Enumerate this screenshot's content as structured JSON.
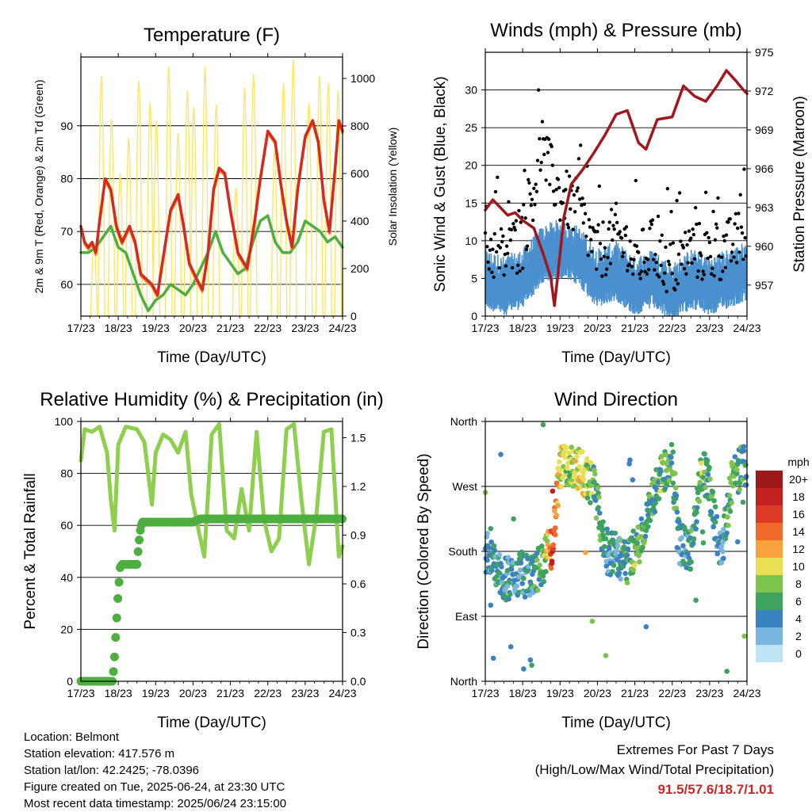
{
  "chart_data": [
    {
      "type": "line",
      "title": "Temperature (F)",
      "xlabel": "Time (Day/UTC)",
      "ylabel": "2m & 9m T (Red, Orange) & 2m Td (Green)",
      "y2label": "Solar Insolation (Yellow)",
      "x_ticks": [
        "17/23",
        "18/23",
        "19/23",
        "20/23",
        "21/23",
        "22/23",
        "23/23",
        "24/23"
      ],
      "ylim": [
        54,
        103
      ],
      "y_ticks": [
        60,
        70,
        80,
        90
      ],
      "y2lim": [
        0,
        1090
      ],
      "y2_ticks": [
        0,
        200,
        400,
        600,
        800,
        1000
      ],
      "colors": {
        "t2m": "#d42a20",
        "t9m": "#f08a24",
        "td": "#4caf3f",
        "solar": "#ffe566"
      },
      "series": [
        {
          "key": "t2m",
          "x": [
            0,
            0.1,
            0.2,
            0.3,
            0.4,
            0.5,
            0.65,
            0.8,
            0.95,
            1.1,
            1.3,
            1.45,
            1.6,
            1.75,
            1.9,
            2.05,
            2.2,
            2.4,
            2.6,
            2.75,
            2.9,
            3.1,
            3.25,
            3.4,
            3.55,
            3.7,
            3.85,
            4.0,
            4.2,
            4.45,
            4.65,
            4.8,
            5.0,
            5.2,
            5.35,
            5.5,
            5.65,
            5.8,
            6.0,
            6.2,
            6.35,
            6.5,
            6.65,
            6.8,
            6.9,
            7.0
          ],
          "values": [
            71,
            68,
            67,
            68,
            66,
            72,
            80,
            78,
            71,
            68,
            71,
            68,
            62,
            61,
            60,
            58,
            65,
            74,
            77,
            71,
            64,
            61,
            59,
            66,
            78,
            82,
            81,
            74,
            66,
            63,
            72,
            80,
            89,
            87,
            79,
            72,
            67,
            78,
            88,
            91,
            87,
            76,
            70,
            82,
            91,
            89
          ]
        },
        {
          "key": "td",
          "x": [
            0,
            0.2,
            0.4,
            0.6,
            0.8,
            1.0,
            1.2,
            1.4,
            1.6,
            1.8,
            2.0,
            2.2,
            2.4,
            2.6,
            2.8,
            3.0,
            3.2,
            3.4,
            3.6,
            3.8,
            4.0,
            4.2,
            4.4,
            4.6,
            4.8,
            5.0,
            5.2,
            5.4,
            5.6,
            5.8,
            6.0,
            6.2,
            6.4,
            6.6,
            6.8,
            7.0
          ],
          "values": [
            66,
            66,
            67,
            69,
            71,
            67,
            66,
            62,
            58,
            55,
            57,
            58,
            60,
            59,
            58,
            60,
            63,
            66,
            70,
            66,
            64,
            62,
            63,
            68,
            72,
            73,
            68,
            66,
            66,
            68,
            72,
            71,
            70,
            68,
            69,
            67
          ]
        },
        {
          "key": "solar",
          "peaks_x": [
            0.35,
            0.55,
            0.82,
            1.05,
            1.28,
            1.55,
            1.85,
            2.02,
            2.35,
            2.6,
            2.85,
            3.02,
            3.32,
            3.62,
            4.15,
            4.38,
            4.62,
            5.18,
            5.42,
            5.68,
            6.1,
            6.38,
            6.62,
            6.88
          ],
          "peaks": [
            300,
            1010,
            830,
            600,
            750,
            990,
            900,
            820,
            1050,
            770,
            950,
            880,
            1050,
            890,
            540,
            960,
            1020,
            700,
            980,
            1080,
            900,
            1010,
            980,
            950
          ]
        }
      ]
    },
    {
      "type": "scatter",
      "title": "Winds (mph) & Pressure (mb)",
      "xlabel": "Time (Day/UTC)",
      "ylabel": "Sonic Wind & Gust (Blue, Black)",
      "y2label": "Station Pressure (Maroon)",
      "x_ticks": [
        "17/23",
        "18/23",
        "19/23",
        "20/23",
        "21/23",
        "22/23",
        "23/23",
        "24/23"
      ],
      "ylim": [
        0,
        35
      ],
      "y_ticks": [
        0,
        5,
        10,
        15,
        20,
        25,
        30
      ],
      "y2lim": [
        954.6,
        975.0
      ],
      "y2_ticks": [
        957,
        960,
        963,
        966,
        969,
        972,
        975
      ],
      "colors": {
        "wind": "#4a90cf",
        "gust": "#000000",
        "pressure": "#a0181e"
      },
      "series": [
        {
          "key": "pressure",
          "x": [
            0,
            0.2,
            0.4,
            0.6,
            0.8,
            1.0,
            1.3,
            1.55,
            1.75,
            1.85,
            1.95,
            2.1,
            2.3,
            2.6,
            2.9,
            3.2,
            3.5,
            3.8,
            4.1,
            4.3,
            4.6,
            5.0,
            5.3,
            5.6,
            5.9,
            6.2,
            6.45,
            6.7,
            6.9,
            7.0
          ],
          "values": [
            962.8,
            963.6,
            963.0,
            962.4,
            962.6,
            962.0,
            961.4,
            959.4,
            957.6,
            955.4,
            958.0,
            962.2,
            964.8,
            965.9,
            967.2,
            968.6,
            970.2,
            970.5,
            968.0,
            967.5,
            969.8,
            970.0,
            972.4,
            971.6,
            971.2,
            972.4,
            973.6,
            972.8,
            972.1,
            971.8
          ]
        },
        {
          "key": "wind",
          "envelope_x": [
            0,
            0.5,
            1.0,
            1.5,
            2.0,
            2.5,
            3.0,
            3.5,
            4.0,
            4.5,
            5.0,
            5.5,
            6.0,
            6.5,
            7.0
          ],
          "envelope_values": [
            5,
            4,
            5,
            8,
            9,
            8,
            5,
            6,
            4,
            5,
            3,
            5,
            4,
            5,
            6
          ]
        },
        {
          "key": "gust",
          "envelope_x": [
            0,
            0.5,
            1.0,
            1.5,
            2.0,
            2.5,
            3.0,
            3.5,
            4.0,
            4.5,
            5.0,
            5.5,
            6.0,
            6.5,
            7.0
          ],
          "envelope_values": [
            9,
            8,
            10,
            22,
            16,
            14,
            8,
            11,
            7,
            9,
            6,
            9,
            8,
            9,
            11
          ]
        }
      ]
    },
    {
      "type": "line",
      "title": "Relative Humidity (%) & Precipitation (in)",
      "xlabel": "Time (Day/UTC)",
      "ylabel": "Percent & Total Rainfall",
      "x_ticks": [
        "17/23",
        "18/23",
        "19/23",
        "20/23",
        "21/23",
        "22/23",
        "23/23",
        "24/23"
      ],
      "ylim": [
        0,
        100
      ],
      "y_ticks": [
        0,
        20,
        40,
        60,
        80,
        100
      ],
      "y2lim": [
        0,
        1.6
      ],
      "y2_ticks": [
        "0.0",
        "0.3",
        "0.6",
        "0.9",
        "1.2",
        "1.5"
      ],
      "colors": {
        "rh": "#8fcf4f",
        "precip": "#4caf3f"
      },
      "series": [
        {
          "key": "rh",
          "x": [
            0,
            0.1,
            0.3,
            0.5,
            0.7,
            0.8,
            0.9,
            1.0,
            1.2,
            1.5,
            1.7,
            1.9,
            2.0,
            2.2,
            2.4,
            2.6,
            2.8,
            2.95,
            3.15,
            3.3,
            3.5,
            3.7,
            3.9,
            4.1,
            4.3,
            4.5,
            4.7,
            4.9,
            5.1,
            5.3,
            5.5,
            5.7,
            5.9,
            6.1,
            6.3,
            6.5,
            6.7,
            6.9,
            7.0
          ],
          "values": [
            85,
            97,
            96,
            98,
            88,
            70,
            58,
            91,
            98,
            97,
            92,
            68,
            88,
            95,
            93,
            88,
            96,
            72,
            58,
            48,
            95,
            99,
            58,
            55,
            74,
            58,
            96,
            62,
            50,
            55,
            97,
            99,
            70,
            45,
            64,
            96,
            97,
            48,
            52
          ]
        },
        {
          "key": "precip",
          "x": [
            0,
            0.85,
            0.9,
            0.95,
            1.0,
            1.05,
            1.1,
            1.3,
            1.5,
            1.55,
            1.6,
            1.65,
            3.0,
            3.2,
            7.0
          ],
          "values": [
            0.0,
            0.0,
            0.15,
            0.35,
            0.55,
            0.7,
            0.72,
            0.72,
            0.72,
            0.85,
            0.95,
            0.98,
            0.98,
            1.0,
            1.0
          ]
        }
      ]
    },
    {
      "type": "scatter",
      "title": "Wind Direction",
      "xlabel": "Time (Day/UTC)",
      "ylabel": "Direction (Colored By Speed)",
      "x_ticks": [
        "17/23",
        "18/23",
        "19/23",
        "20/23",
        "21/23",
        "22/23",
        "23/23",
        "24/23"
      ],
      "y_ticks": [
        "North",
        "East",
        "South",
        "West",
        "North"
      ],
      "ylim": [
        0,
        360
      ],
      "legend": {
        "title": "mph",
        "placement": "right",
        "labels": [
          "20+",
          "18",
          "16",
          "14",
          "12",
          "10",
          "8",
          "6",
          "4",
          "2",
          "0"
        ],
        "colors": [
          "#9e1a1a",
          "#c3211f",
          "#dd3b26",
          "#f06a2b",
          "#f7a23c",
          "#e9df55",
          "#7cc44e",
          "#3ea35e",
          "#3b83c0",
          "#7ab6e0",
          "#bfe4f6"
        ]
      },
      "series": [
        {
          "key": "direction",
          "x": [
            0,
            0.5,
            1.0,
            1.2,
            1.6,
            1.8,
            2.0,
            2.3,
            2.6,
            2.9,
            3.2,
            3.5,
            3.8,
            4.1,
            4.4,
            4.7,
            5.0,
            5.2,
            5.5,
            5.8,
            6.0,
            6.3,
            6.6,
            6.9
          ],
          "values": [
            180,
            140,
            150,
            140,
            170,
            190,
            295,
            300,
            290,
            270,
            180,
            175,
            165,
            190,
            235,
            290,
            300,
            190,
            180,
            295,
            270,
            175,
            280,
            300
          ],
          "speed": [
            5,
            4,
            4,
            4,
            8,
            16,
            9,
            8,
            10,
            7,
            5,
            4,
            6,
            7,
            6,
            7,
            6,
            4,
            5,
            7,
            6,
            4,
            7,
            6
          ]
        }
      ]
    }
  ],
  "info": {
    "location": "Location: Belmont",
    "elevation": "Station elevation: 417.576 m",
    "latlon": "Station lat/lon: 42.2425; -78.0396",
    "created": "Figure created on Tue, 2025-06-24, at 23:30 UTC",
    "recent": "Most recent data timestamp: 2025/06/24 23:15:00"
  },
  "extremes": {
    "heading": "Extremes For Past 7 Days",
    "subheading": "(High/Low/Max Wind/Total Precipitation)",
    "values": "91.5/57.6/18.7/1.01"
  }
}
